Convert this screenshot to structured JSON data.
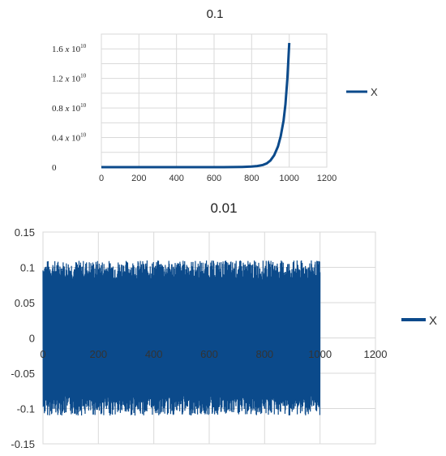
{
  "chart_data": [
    {
      "type": "line",
      "title": "0.1",
      "xlabel": "",
      "ylabel": "",
      "xlim": [
        0,
        1200
      ],
      "ylim": [
        0,
        18000000000.0
      ],
      "x_ticks": [
        "0",
        "200",
        "400",
        "600",
        "800",
        "1000",
        "1200"
      ],
      "y_ticks": [
        {
          "value": 0,
          "mantissa": "0",
          "base": "",
          "exp": ""
        },
        {
          "value": 4000000000,
          "mantissa": "0.4",
          "base": "x 10",
          "exp": "10"
        },
        {
          "value": 8000000000,
          "mantissa": "0.8",
          "base": "x 10",
          "exp": "10"
        },
        {
          "value": 12000000000,
          "mantissa": "1.2",
          "base": "x 10",
          "exp": "10"
        },
        {
          "value": 16000000000,
          "mantissa": "1.6",
          "base": "x 10",
          "exp": "10"
        }
      ],
      "grid": true,
      "legend": "right",
      "series": [
        {
          "name": "X",
          "color": "#0b4a8b",
          "x": [
            0,
            100,
            200,
            300,
            400,
            500,
            600,
            650,
            700,
            750,
            800,
            830,
            860,
            880,
            900,
            920,
            940,
            955,
            970,
            980,
            990,
            1000
          ],
          "values": [
            0,
            0,
            0,
            0,
            0,
            0,
            0,
            0,
            10000000,
            30000000,
            80000000,
            150000000,
            300000000,
            500000000,
            900000000,
            1600000000,
            2800000000,
            4200000000,
            6300000000,
            8500000000,
            12000000000,
            16800000000
          ]
        }
      ]
    },
    {
      "type": "line",
      "title": "0.01",
      "xlabel": "",
      "ylabel": "",
      "xlim": [
        0,
        1200
      ],
      "ylim": [
        -0.15,
        0.15
      ],
      "x_ticks": [
        "0",
        "200",
        "400",
        "600",
        "800",
        "1000",
        "1200"
      ],
      "y_ticks": [
        "0.15",
        "0.1",
        "0.05",
        "0",
        "-0.05",
        "-0.1",
        "-0.15"
      ],
      "grid": true,
      "legend": "right",
      "series": [
        {
          "name": "X",
          "color": "#0b4a8b",
          "x_range": [
            0,
            1000
          ],
          "amplitude": 0.1,
          "description_of_shape": "dense oscillation between about -0.11 and 0.11"
        }
      ]
    }
  ]
}
